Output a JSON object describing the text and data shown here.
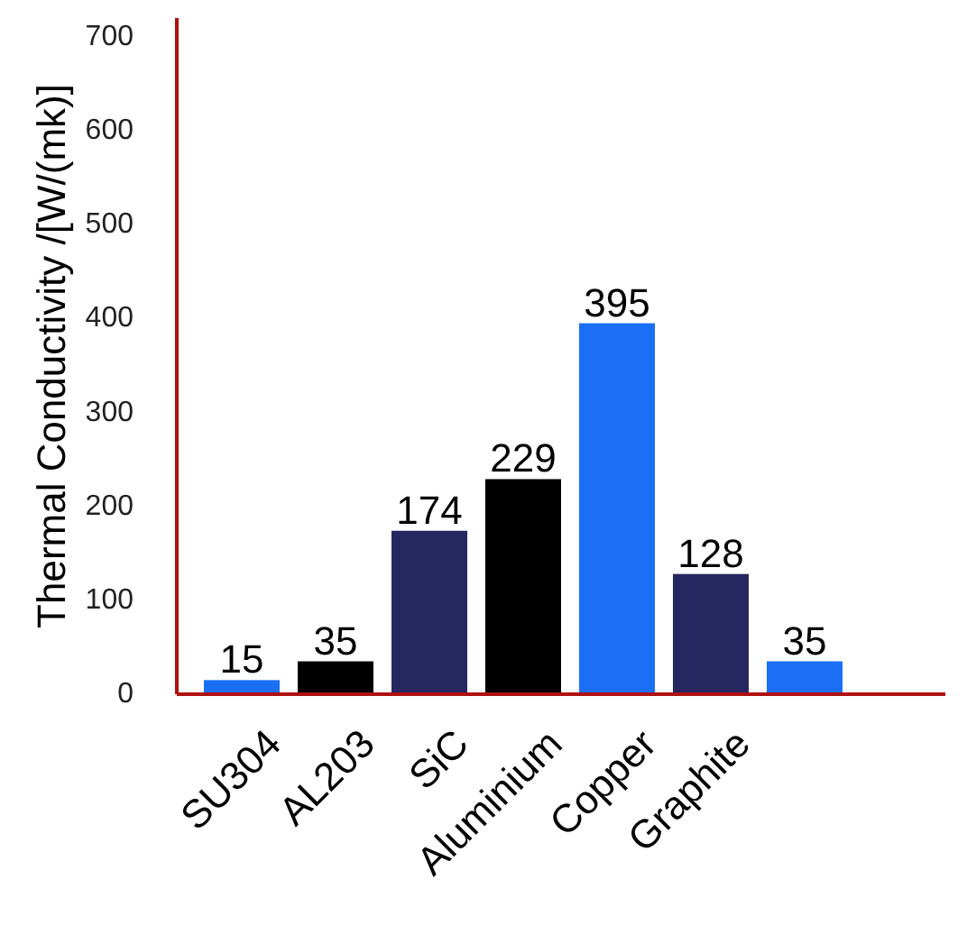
{
  "chart_data": {
    "type": "bar",
    "ylabel": "Thermal Conductivity /[W/(mk)]",
    "categories": [
      "SU304",
      "AL203",
      "SiC",
      "Aluminium",
      "Copper",
      "Graphite",
      null
    ],
    "values": [
      15,
      35,
      174,
      229,
      395,
      128,
      35
    ],
    "colors": [
      "#1a6ff5",
      "#000000",
      "#262660",
      "#000000",
      "#1a6ff5",
      "#262660",
      "#1a6ff5"
    ],
    "ylim": [
      0,
      720
    ],
    "yticks": [
      0,
      100,
      200,
      300,
      400,
      500,
      600,
      700
    ],
    "data_labels": true,
    "grid": false
  }
}
